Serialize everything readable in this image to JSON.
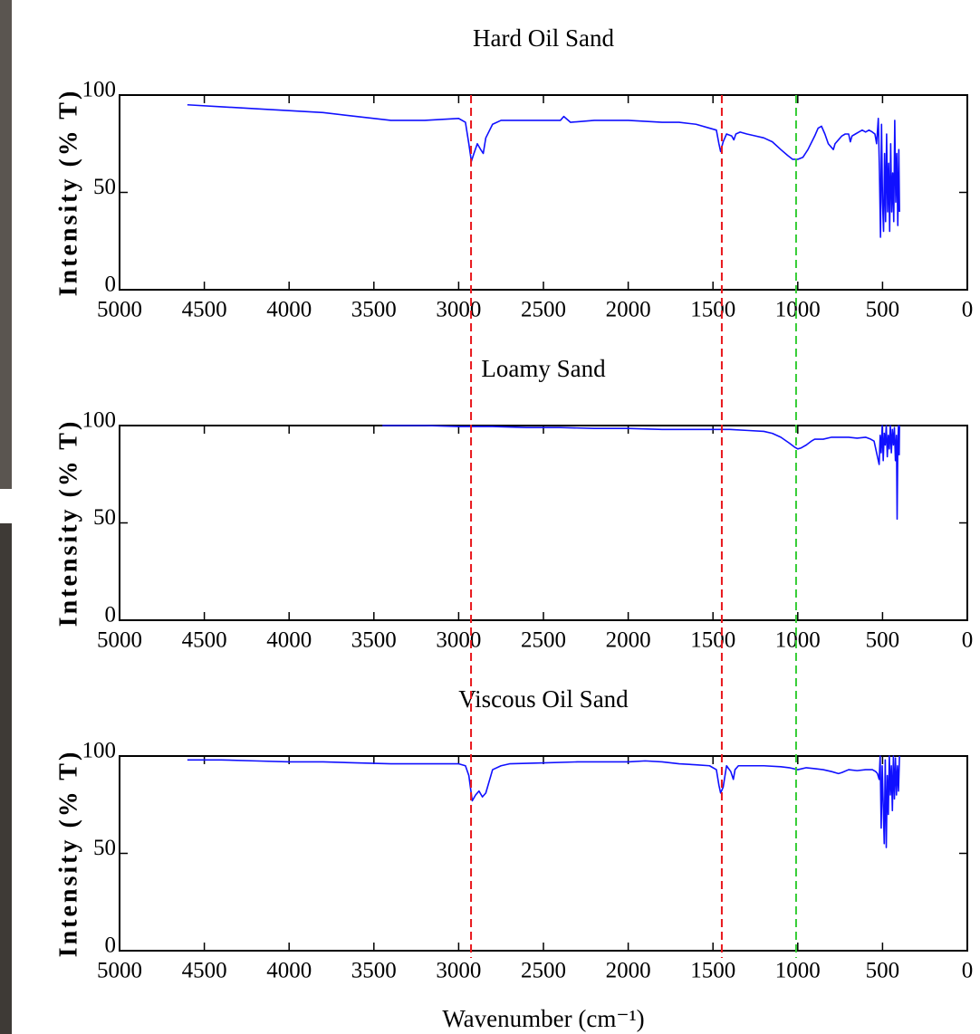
{
  "chart_data": [
    {
      "type": "line",
      "title": "Hard Oil Sand",
      "ylabel": "Intensity (% T)",
      "xlim": [
        5000,
        0
      ],
      "ylim": [
        0,
        100
      ],
      "xticks": [
        5000,
        4500,
        4000,
        3500,
        3000,
        2500,
        2000,
        1500,
        1000,
        500,
        0
      ],
      "yticks": [
        0,
        50,
        100
      ],
      "color": "#1010ff",
      "reference_lines": [
        {
          "x": 2927,
          "color": "#e8161b"
        },
        {
          "x": 1448,
          "color": "#e8161b"
        },
        {
          "x": 1010,
          "color": "#33cc33"
        }
      ],
      "x": [
        4600,
        4400,
        4200,
        4000,
        3800,
        3600,
        3400,
        3200,
        3000,
        2960,
        2940,
        2925,
        2910,
        2890,
        2870,
        2855,
        2840,
        2800,
        2750,
        2600,
        2400,
        2380,
        2340,
        2200,
        2000,
        1800,
        1700,
        1600,
        1520,
        1480,
        1465,
        1455,
        1440,
        1420,
        1390,
        1377,
        1365,
        1340,
        1300,
        1250,
        1200,
        1150,
        1100,
        1060,
        1030,
        1000,
        970,
        940,
        900,
        880,
        860,
        840,
        820,
        800,
        790,
        780,
        760,
        740,
        720,
        700,
        690,
        680,
        660,
        640,
        620,
        600,
        580,
        560,
        545,
        535,
        525,
        518,
        512,
        506,
        500,
        494,
        488,
        482,
        476,
        470,
        464,
        458,
        452,
        446,
        440,
        434,
        428,
        422,
        416,
        410,
        404,
        400
      ],
      "values": [
        95,
        94,
        93,
        92,
        91,
        89,
        87,
        87,
        88,
        86,
        75,
        66,
        70,
        75,
        72,
        70,
        78,
        85,
        87,
        87,
        87,
        89,
        86,
        87,
        87,
        86,
        86,
        85,
        83,
        82,
        75,
        71,
        76,
        80,
        79,
        77,
        80,
        81,
        80,
        79,
        78,
        76,
        72,
        69,
        67,
        67,
        68,
        72,
        79,
        83,
        84,
        80,
        75,
        73,
        72,
        75,
        77,
        79,
        80,
        80,
        76,
        79,
        80,
        81,
        82,
        81,
        82,
        81,
        80,
        75,
        88,
        60,
        27,
        85,
        45,
        30,
        70,
        35,
        80,
        40,
        65,
        30,
        75,
        40,
        60,
        35,
        87,
        45,
        70,
        33,
        72,
        40
      ]
    },
    {
      "type": "line",
      "title": "Loamy Sand",
      "ylabel": "Intensity (% T)",
      "xlim": [
        5000,
        0
      ],
      "ylim": [
        0,
        100
      ],
      "xticks": [
        5000,
        4500,
        4000,
        3500,
        3000,
        2500,
        2000,
        1500,
        1000,
        500,
        0
      ],
      "yticks": [
        0,
        50,
        100
      ],
      "color": "#1010ff",
      "x": [
        3450,
        3200,
        3000,
        2800,
        2600,
        2400,
        2200,
        2000,
        1800,
        1600,
        1400,
        1300,
        1200,
        1150,
        1100,
        1050,
        1020,
        1000,
        980,
        950,
        920,
        900,
        850,
        800,
        750,
        700,
        650,
        600,
        570,
        550,
        540,
        530,
        520,
        514,
        508,
        502,
        496,
        490,
        484,
        478,
        472,
        466,
        460,
        454,
        448,
        442,
        436,
        430,
        424,
        418,
        414,
        410,
        406,
        402,
        400
      ],
      "values": [
        100,
        100,
        99.5,
        99.5,
        99,
        99,
        98.5,
        98.5,
        98,
        98,
        98,
        97.5,
        97,
        96,
        94,
        91,
        89,
        88,
        88.5,
        90,
        92,
        93,
        93,
        94,
        94,
        94,
        93.5,
        94,
        93,
        92,
        88,
        84,
        80,
        95,
        86,
        100,
        82,
        96,
        90,
        100,
        84,
        95,
        88,
        100,
        86,
        98,
        90,
        99,
        82,
        95,
        52,
        90,
        100,
        85,
        100
      ]
    },
    {
      "type": "line",
      "title": "Viscous Oil Sand",
      "ylabel": "Intensity (% T)",
      "xlabel": "Wavenumber (cm⁻¹)",
      "xlim": [
        5000,
        0
      ],
      "ylim": [
        0,
        100
      ],
      "xticks": [
        5000,
        4500,
        4000,
        3500,
        3000,
        2500,
        2000,
        1500,
        1000,
        500,
        0
      ],
      "yticks": [
        0,
        50,
        100
      ],
      "color": "#1010ff",
      "x": [
        4600,
        4400,
        4200,
        4000,
        3800,
        3600,
        3400,
        3200,
        3000,
        2960,
        2940,
        2920,
        2900,
        2880,
        2860,
        2840,
        2800,
        2750,
        2700,
        2500,
        2300,
        2100,
        2000,
        1900,
        1800,
        1700,
        1600,
        1520,
        1480,
        1465,
        1455,
        1440,
        1420,
        1395,
        1380,
        1370,
        1350,
        1300,
        1200,
        1100,
        1050,
        1000,
        950,
        900,
        850,
        800,
        760,
        740,
        700,
        650,
        600,
        560,
        540,
        530,
        520,
        514,
        508,
        502,
        496,
        490,
        484,
        478,
        472,
        466,
        460,
        454,
        448,
        442,
        436,
        430,
        424,
        418,
        412,
        406,
        400
      ],
      "values": [
        98,
        98,
        97.5,
        97,
        97,
        96.5,
        96,
        96,
        96,
        95,
        90,
        77,
        80,
        82,
        79,
        81,
        93,
        95,
        96,
        96.5,
        97,
        97,
        97,
        97.5,
        97,
        96,
        95.5,
        95,
        93,
        85,
        81,
        84,
        95,
        92,
        88,
        93,
        95,
        95,
        95,
        94.5,
        94,
        93,
        94,
        93.5,
        93,
        92,
        91,
        91.5,
        93,
        92.5,
        93,
        93,
        92,
        91,
        88,
        100,
        63,
        95,
        75,
        55,
        98,
        53,
        90,
        70,
        100,
        80,
        95,
        72,
        100,
        78,
        99,
        80,
        95,
        82,
        100
      ]
    }
  ]
}
